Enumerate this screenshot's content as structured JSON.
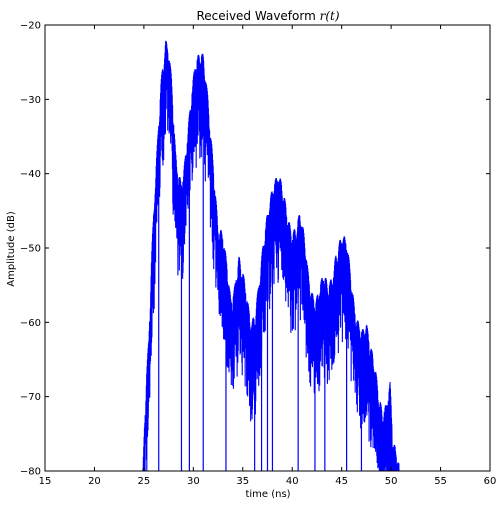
{
  "chart_data": {
    "type": "line",
    "title": "Received Waveform",
    "title_math": "r(t)",
    "xlabel": "time (ns)",
    "ylabel": "Amplitude (dB)",
    "xlim": [
      15,
      60
    ],
    "ylim": [
      -80,
      -20
    ],
    "xticks": [
      15,
      20,
      25,
      30,
      35,
      40,
      45,
      50,
      55,
      60
    ],
    "yticks": [
      -20,
      -30,
      -40,
      -50,
      -60,
      -70,
      -80
    ],
    "tick_labels_x": [
      "15",
      "20",
      "25",
      "30",
      "35",
      "40",
      "45",
      "50",
      "55",
      "60"
    ],
    "tick_labels_y": [
      "−20",
      "−30",
      "−40",
      "−50",
      "−60",
      "−70",
      "−80"
    ],
    "grid": false,
    "series": [
      {
        "color": "#0000ff",
        "envelope": {
          "x": [
            24.9,
            25.2,
            25.5,
            25.8,
            26.1,
            26.4,
            26.7,
            27.0,
            27.2,
            27.5,
            27.8,
            28.0,
            28.2,
            28.5,
            28.8,
            29.0,
            29.3,
            29.6,
            29.9,
            30.2,
            30.5,
            30.8,
            31.0,
            31.2,
            31.5,
            31.8,
            32.1,
            32.5,
            33.0,
            33.4,
            33.8,
            34.2,
            34.6,
            35.0,
            35.4,
            35.8,
            36.2,
            36.6,
            37.0,
            37.4,
            37.8,
            38.2,
            38.6,
            38.9,
            39.2,
            39.6,
            40.0,
            40.4,
            40.8,
            41.2,
            41.6,
            42.0,
            42.4,
            42.8,
            43.2,
            43.6,
            44.0,
            44.4,
            44.8,
            45.1,
            45.5,
            45.9,
            46.3,
            46.7,
            47.1,
            47.5,
            47.9,
            48.3,
            48.7,
            49.1,
            49.5,
            49.9,
            50.2,
            50.5,
            50.8
          ],
          "y": [
            -80,
            -68,
            -62,
            -50,
            -42,
            -35,
            -28,
            -24,
            -22,
            -23,
            -27,
            -32,
            -37,
            -40,
            -41,
            -40,
            -36,
            -32,
            -28,
            -25,
            -24,
            -23.5,
            -24,
            -26,
            -30,
            -35,
            -40,
            -47,
            -48,
            -52,
            -57,
            -55,
            -51,
            -53,
            -56,
            -60,
            -59,
            -55,
            -50,
            -46,
            -43,
            -41,
            -40,
            -41,
            -43,
            -46,
            -48,
            -47,
            -45,
            -48,
            -53,
            -56,
            -57,
            -55,
            -53,
            -55,
            -54,
            -51,
            -49,
            -48,
            -49,
            -53,
            -58,
            -60,
            -61,
            -60,
            -63,
            -65,
            -69,
            -72,
            -71,
            -68,
            -76,
            -77,
            -79
          ]
        },
        "nulls_x": [
          26.5,
          28.8,
          29.6,
          31.0,
          33.3,
          36.2,
          36.9,
          37.5,
          38.0,
          40.6,
          42.3,
          43.3,
          45.5,
          47.0,
          49.2,
          50.1
        ]
      }
    ]
  }
}
